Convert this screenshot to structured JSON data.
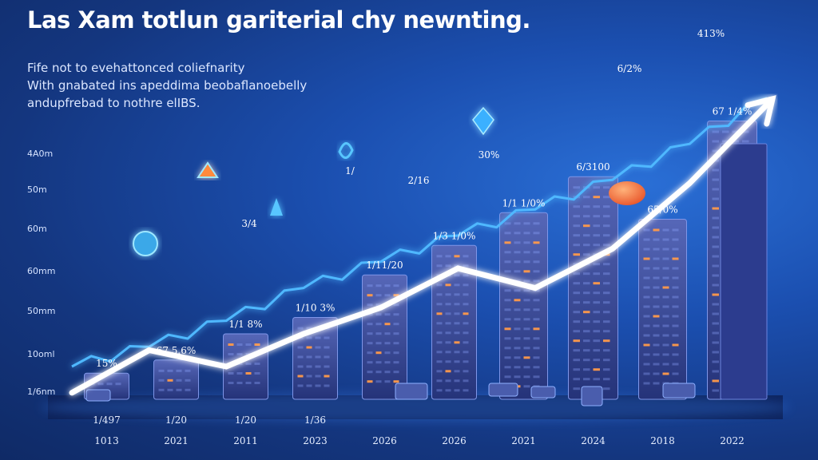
{
  "title": "Las Xam totlun gariterial chy newnting.",
  "subtitle_lines": [
    "Fife not to evehattonced coliefnarity",
    "With gnabated ins apeddima beobaflanoebelly",
    "andupfrebad to nothre elIBS."
  ],
  "colors": {
    "background_top": "#1b4fb0",
    "background_dark": "#0f2a66",
    "trend_line": "#4fb8ff",
    "arrow": "#ffffff",
    "accent_orange": "#ff7a3d",
    "building": "#3b4d9a",
    "window_lit": "#ff9a4a"
  },
  "icons": [
    "globe-icon",
    "boat-icon",
    "chart-icon",
    "ship-icon",
    "diamond-icon",
    "orange-ball-icon"
  ],
  "chart_data": {
    "type": "bar",
    "title": "Las Xam totlun gariterial chy newnting.",
    "xlabel": "",
    "ylabel": "",
    "y_tick_labels": [
      "4A0m",
      "50m",
      "60m",
      "60mm",
      "50mm",
      "10oml",
      "1/6nm"
    ],
    "categories": [
      "1013",
      "2021",
      "2011",
      "2023",
      "2026",
      "2026",
      "2021",
      "2024",
      "2018",
      "2022"
    ],
    "top_tick_labels": [
      "1/497",
      "1/20",
      "1/20",
      "1/36"
    ],
    "values": [
      8,
      12,
      20,
      25,
      38,
      47,
      57,
      68,
      55,
      85
    ],
    "ylim": [
      0,
      100
    ],
    "data_labels": [
      "15%",
      "67 5.6%",
      "1/1 8%",
      "1/10 3%",
      "1/11/20",
      "1/3 1/0%",
      "1/1 1/0%",
      "6/3100",
      "65/0%",
      "67 1/4%"
    ],
    "trend_labels": [
      "3/4",
      "1/",
      "2/16",
      "30%",
      "6/2%",
      "413%"
    ],
    "series": [
      {
        "name": "trend",
        "values": [
          10,
          16,
          24,
          34,
          42,
          50,
          58,
          67,
          78,
          92
        ]
      },
      {
        "name": "arrow",
        "values": [
          2,
          15,
          10,
          20,
          28,
          40,
          34,
          46,
          66,
          90
        ]
      }
    ],
    "legend": "none",
    "grid": false
  }
}
